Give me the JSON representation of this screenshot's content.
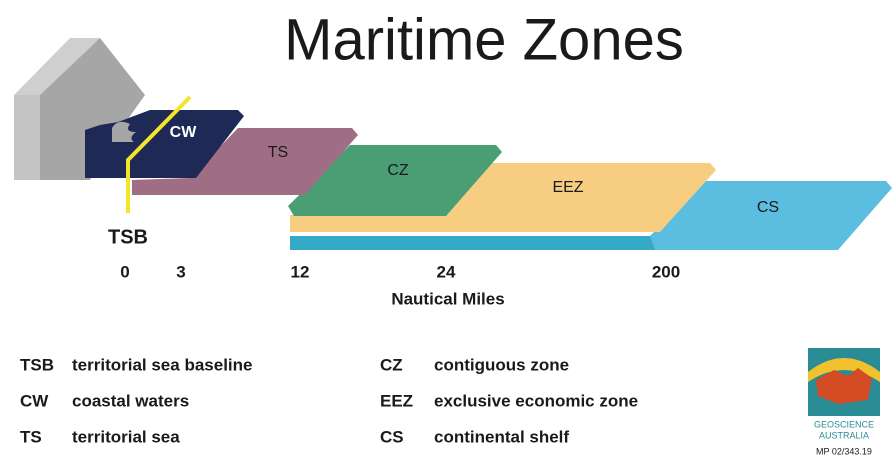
{
  "title": "Maritime Zones",
  "zones": [
    {
      "label": "CW"
    },
    {
      "label": "TS"
    },
    {
      "label": "CZ"
    },
    {
      "label": "EEZ"
    },
    {
      "label": "CS"
    }
  ],
  "baseline_label": "TSB",
  "scale": {
    "ticks": [
      0,
      3,
      12,
      24,
      200
    ],
    "label": "Nautical Miles"
  },
  "legend": [
    {
      "abbr": "TSB",
      "text": "territorial sea baseline"
    },
    {
      "abbr": "CW",
      "text": "coastal waters"
    },
    {
      "abbr": "TS",
      "text": "territorial sea"
    },
    {
      "abbr": "CZ",
      "text": "contiguous zone"
    },
    {
      "abbr": "EEZ",
      "text": "exclusive economic zone"
    },
    {
      "abbr": "CS",
      "text": "continental shelf"
    }
  ],
  "logo": {
    "lines": [
      "GEOSCIENCE",
      "AUSTRALIA"
    ],
    "code": "MP 02/343.19"
  }
}
